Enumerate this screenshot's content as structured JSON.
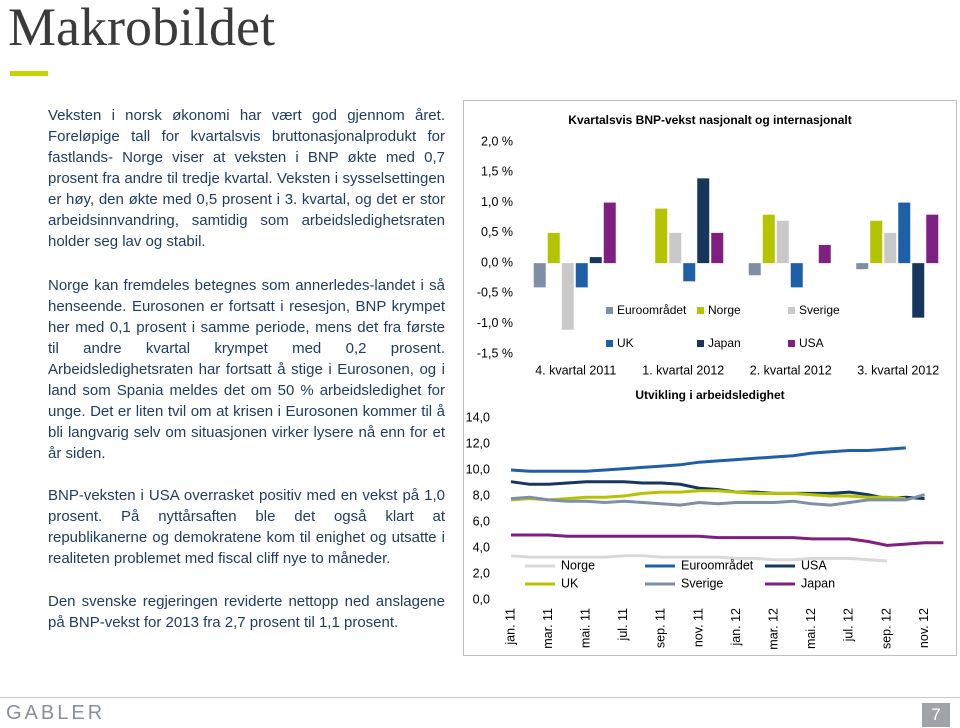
{
  "header": {
    "title": "Makrobildet"
  },
  "paragraphs": [
    "Veksten i norsk økonomi har vært god gjennom året. Foreløpige tall for kvartalsvis bruttonasjonalprodukt for fastlands- Norge viser at veksten i BNP økte med 0,7 prosent fra andre til tredje kvartal. Veksten i sysselsettingen er høy, den økte med 0,5 prosent i 3. kvartal, og det er stor arbeidsinnvandring, samtidig som arbeidsledighetsraten holder seg lav og stabil.",
    "Norge kan fremdeles betegnes som annerledes-landet i så henseende. Eurosonen er fortsatt i resesjon, BNP krympet her med 0,1 prosent i samme periode, mens det fra første til andre kvartal krympet med 0,2 prosent. Arbeidsledighetsraten har fortsatt å stige i Eurosonen, og i land som Spania meldes det om 50 % arbeidsledighet for unge. Det er liten tvil om at krisen i Eurosonen kommer til å bli langvarig selv om situasjonen virker lysere nå enn for et år siden.",
    "BNP-veksten i USA overrasket positiv med en vekst på 1,0 prosent. På nyttårsaften ble det også klart at republikanerne og demokratene kom til enighet og utsatte i realiteten problemet med fiscal cliff nye to måneder.",
    "Den svenske regjeringen reviderte nettopp ned anslagene på BNP-vekst for 2013 fra 2,7 prosent til 1,1 prosent."
  ],
  "chart_data": [
    {
      "type": "bar",
      "title": "Kvartalsvis BNP-vekst nasjonalt og internasjonalt",
      "categories": [
        "4. kvartal 2011",
        "1. kvartal 2012",
        "2. kvartal 2012",
        "3. kvartal 2012"
      ],
      "series": [
        {
          "name": "Euroområdet",
          "color": "#7f8fa6",
          "values": [
            -0.4,
            0.0,
            -0.2,
            -0.1
          ]
        },
        {
          "name": "Norge",
          "color": "#b5c400",
          "values": [
            0.5,
            0.9,
            0.8,
            0.7
          ]
        },
        {
          "name": "Sverige",
          "color": "#c9c9c9",
          "values": [
            -1.1,
            0.5,
            0.7,
            0.5
          ]
        },
        {
          "name": "UK",
          "color": "#1f5fa8",
          "values": [
            -0.4,
            -0.3,
            -0.4,
            1.0
          ]
        },
        {
          "name": "Japan",
          "color": "#17365d",
          "values": [
            0.1,
            1.4,
            0.0,
            -0.9
          ]
        },
        {
          "name": "USA",
          "color": "#7f1f7f",
          "values": [
            1.0,
            0.5,
            0.3,
            0.8
          ]
        }
      ],
      "ylim": [
        -1.5,
        2
      ],
      "yticks": [
        {
          "value": -1.5,
          "label": "-1,5 %"
        },
        {
          "value": -1,
          "label": "-1,0 %"
        },
        {
          "value": -0.5,
          "label": "-0,5 %"
        },
        {
          "value": 0,
          "label": "0,0 %"
        },
        {
          "value": 0.5,
          "label": "0,5 %"
        },
        {
          "value": 1,
          "label": "1,0 %"
        },
        {
          "value": 1.5,
          "label": "1,5 %"
        },
        {
          "value": 2,
          "label": "2,0 %"
        }
      ]
    },
    {
      "type": "line",
      "title": "Utvikling i arbeidsledighet",
      "categories": [
        "jan. 11",
        null,
        "mar. 11",
        null,
        "mai. 11",
        null,
        "jul. 11",
        null,
        "sep. 11",
        null,
        "nov. 11",
        null,
        "jan. 12",
        null,
        "mar. 12",
        null,
        "mai. 12",
        null,
        "jul. 12",
        null,
        "sep. 12",
        null,
        "nov. 12",
        null
      ],
      "series": [
        {
          "name": "Norge",
          "color": "#d9d9d9",
          "values": [
            3.4,
            3.3,
            3.3,
            3.3,
            3.3,
            3.3,
            3.4,
            3.4,
            3.3,
            3.3,
            3.3,
            3.3,
            3.2,
            3.2,
            3.1,
            3.1,
            3.2,
            3.2,
            3.2,
            3.1,
            3.0,
            null,
            null,
            null
          ]
        },
        {
          "name": "Euroområdet",
          "color": "#1f5fa8",
          "values": [
            10.0,
            9.9,
            9.9,
            9.9,
            9.9,
            10.0,
            10.1,
            10.2,
            10.3,
            10.4,
            10.6,
            10.7,
            10.8,
            10.9,
            11.0,
            11.1,
            11.3,
            11.4,
            11.5,
            11.5,
            11.6,
            11.7,
            null,
            null
          ]
        },
        {
          "name": "USA",
          "color": "#17365d",
          "values": [
            9.1,
            8.9,
            8.9,
            9.0,
            9.1,
            9.1,
            9.1,
            9.0,
            9.0,
            8.9,
            8.6,
            8.5,
            8.3,
            8.3,
            8.2,
            8.2,
            8.2,
            8.2,
            8.3,
            8.1,
            7.8,
            7.9,
            7.8,
            null
          ]
        },
        {
          "name": "UK",
          "color": "#b5c400",
          "values": [
            7.7,
            7.8,
            7.7,
            7.8,
            7.9,
            7.9,
            8.0,
            8.2,
            8.3,
            8.3,
            8.4,
            8.4,
            8.3,
            8.2,
            8.2,
            8.2,
            8.1,
            8.0,
            8.0,
            7.9,
            7.9,
            7.8,
            null,
            null
          ]
        },
        {
          "name": "Sverige",
          "color": "#7f8fa6",
          "values": [
            7.8,
            7.9,
            7.7,
            7.6,
            7.6,
            7.5,
            7.6,
            7.5,
            7.4,
            7.3,
            7.5,
            7.4,
            7.5,
            7.5,
            7.5,
            7.6,
            7.4,
            7.3,
            7.5,
            7.7,
            7.7,
            7.7,
            8.1,
            null
          ]
        },
        {
          "name": "Japan",
          "color": "#7f1f7f",
          "values": [
            5.0,
            5.0,
            5.0,
            4.9,
            4.9,
            4.9,
            4.9,
            4.9,
            4.9,
            4.9,
            4.9,
            4.8,
            4.8,
            4.8,
            4.8,
            4.8,
            4.7,
            4.7,
            4.7,
            4.5,
            4.2,
            4.3,
            4.4,
            4.4
          ]
        }
      ],
      "ylim": [
        0,
        14
      ],
      "yticks": [
        {
          "value": 0,
          "label": "0,0"
        },
        {
          "value": 2,
          "label": "2,0"
        },
        {
          "value": 4,
          "label": "4,0"
        },
        {
          "value": 6,
          "label": "6,0"
        },
        {
          "value": 8,
          "label": "8,0"
        },
        {
          "value": 10,
          "label": "10,0"
        },
        {
          "value": 12,
          "label": "12,0"
        },
        {
          "value": 14,
          "label": "14,0"
        }
      ]
    }
  ],
  "footer": {
    "logo": "GABLER",
    "page": "7"
  }
}
